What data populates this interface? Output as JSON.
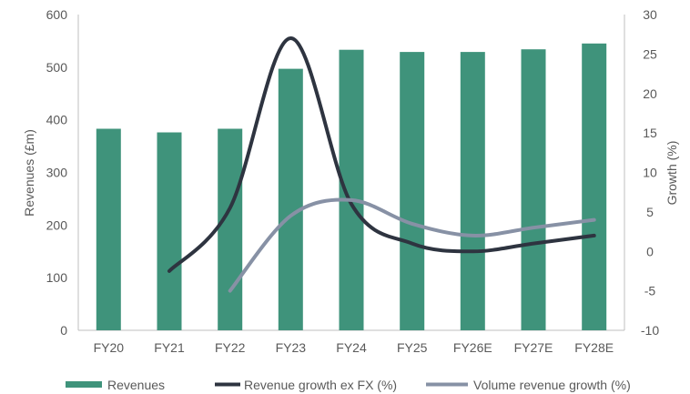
{
  "chart_data": {
    "type": "bar",
    "categories": [
      "FY20",
      "FY21",
      "FY22",
      "FY23",
      "FY24",
      "FY25",
      "FY26E",
      "FY27E",
      "FY28E"
    ],
    "bars": {
      "name": "Revenues",
      "values": [
        383,
        376,
        383,
        497,
        533,
        529,
        529,
        534,
        545
      ],
      "color": "#3f937b"
    },
    "lines": [
      {
        "name": "Revenue growth ex FX (%)",
        "values": [
          null,
          -2.5,
          5.5,
          27,
          6,
          1,
          0,
          1,
          2
        ],
        "color": "#2e3440"
      },
      {
        "name": "Volume revenue growth (%)",
        "values": [
          null,
          null,
          -5,
          4.5,
          6.5,
          3.5,
          2,
          3,
          4
        ],
        "color": "#8791a5"
      }
    ],
    "y_left": {
      "label": "Revenues (£m)",
      "lim": [
        0,
        600
      ],
      "ticks": [
        "0",
        "100",
        "200",
        "300",
        "400",
        "500",
        "600"
      ]
    },
    "y_right": {
      "label": "Growth (%)",
      "lim": [
        -10,
        30
      ],
      "ticks": [
        "-10",
        "-5",
        "0",
        "5",
        "10",
        "15",
        "20",
        "25",
        "30"
      ]
    },
    "legend": {
      "position": "bottom",
      "items": [
        "Revenues",
        "Revenue growth ex FX (%)",
        "Volume revenue growth (%)"
      ]
    },
    "grid": false
  }
}
